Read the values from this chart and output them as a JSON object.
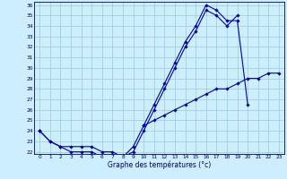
{
  "xlabel": "Graphe des températures (°c)",
  "background_color": "#cceeff",
  "line_color": "#0000aa",
  "grid_color": "#99cccc",
  "y_min": 22,
  "y_max": 36,
  "y_ticks": [
    22,
    23,
    24,
    25,
    26,
    27,
    28,
    29,
    30,
    31,
    32,
    33,
    34,
    35,
    36
  ],
  "series1": [
    24.0,
    23.0,
    22.5,
    22.5,
    22.5,
    22.5,
    22.0,
    22.0,
    21.5,
    22.0,
    24.0,
    26.0,
    28.0,
    30.0,
    32.0,
    33.5,
    35.5,
    35.0,
    34.0,
    35.0,
    null,
    null,
    null,
    null
  ],
  "series2": [
    24.0,
    23.0,
    22.5,
    22.0,
    22.0,
    22.0,
    21.5,
    21.5,
    21.5,
    22.5,
    24.5,
    26.5,
    28.5,
    30.5,
    32.5,
    34.0,
    36.0,
    35.5,
    34.5,
    34.5,
    26.5,
    null,
    null,
    null
  ],
  "series3": [
    24.0,
    null,
    null,
    null,
    null,
    null,
    null,
    null,
    null,
    null,
    24.5,
    25.0,
    25.5,
    26.0,
    26.5,
    27.0,
    27.5,
    28.0,
    28.0,
    28.5,
    29.0,
    29.0,
    29.5,
    29.5
  ]
}
